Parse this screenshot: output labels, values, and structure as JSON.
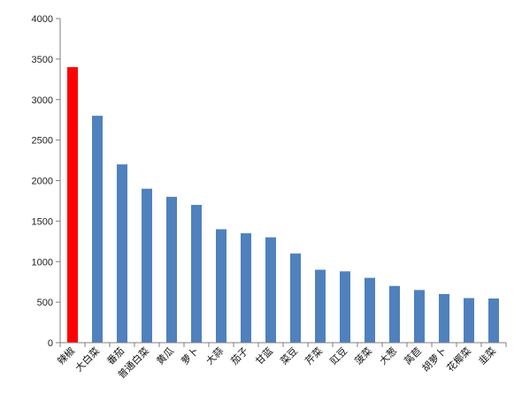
{
  "chart_data": {
    "type": "bar",
    "categories": [
      "辣椒",
      "大白菜",
      "番茄",
      "普通白菜",
      "黄瓜",
      "萝卜",
      "大蒜",
      "茄子",
      "甘蓝",
      "菜豆",
      "芹菜",
      "豇豆",
      "菠菜",
      "大葱",
      "莴苣",
      "胡萝卜",
      "花椰菜",
      "韭菜"
    ],
    "values": [
      3400,
      2800,
      2200,
      1900,
      1800,
      1700,
      1400,
      1350,
      1300,
      1100,
      900,
      880,
      800,
      700,
      650,
      600,
      550,
      545
    ],
    "colors": [
      "#ff0000",
      "#4f81bd",
      "#4f81bd",
      "#4f81bd",
      "#4f81bd",
      "#4f81bd",
      "#4f81bd",
      "#4f81bd",
      "#4f81bd",
      "#4f81bd",
      "#4f81bd",
      "#4f81bd",
      "#4f81bd",
      "#4f81bd",
      "#4f81bd",
      "#4f81bd",
      "#4f81bd",
      "#4f81bd"
    ],
    "title": "",
    "xlabel": "",
    "ylabel": "",
    "ylim": [
      0,
      4000
    ],
    "yticks": [
      0,
      500,
      1000,
      1500,
      2000,
      2500,
      3000,
      3500,
      4000
    ],
    "grid": false,
    "legend": "none"
  }
}
